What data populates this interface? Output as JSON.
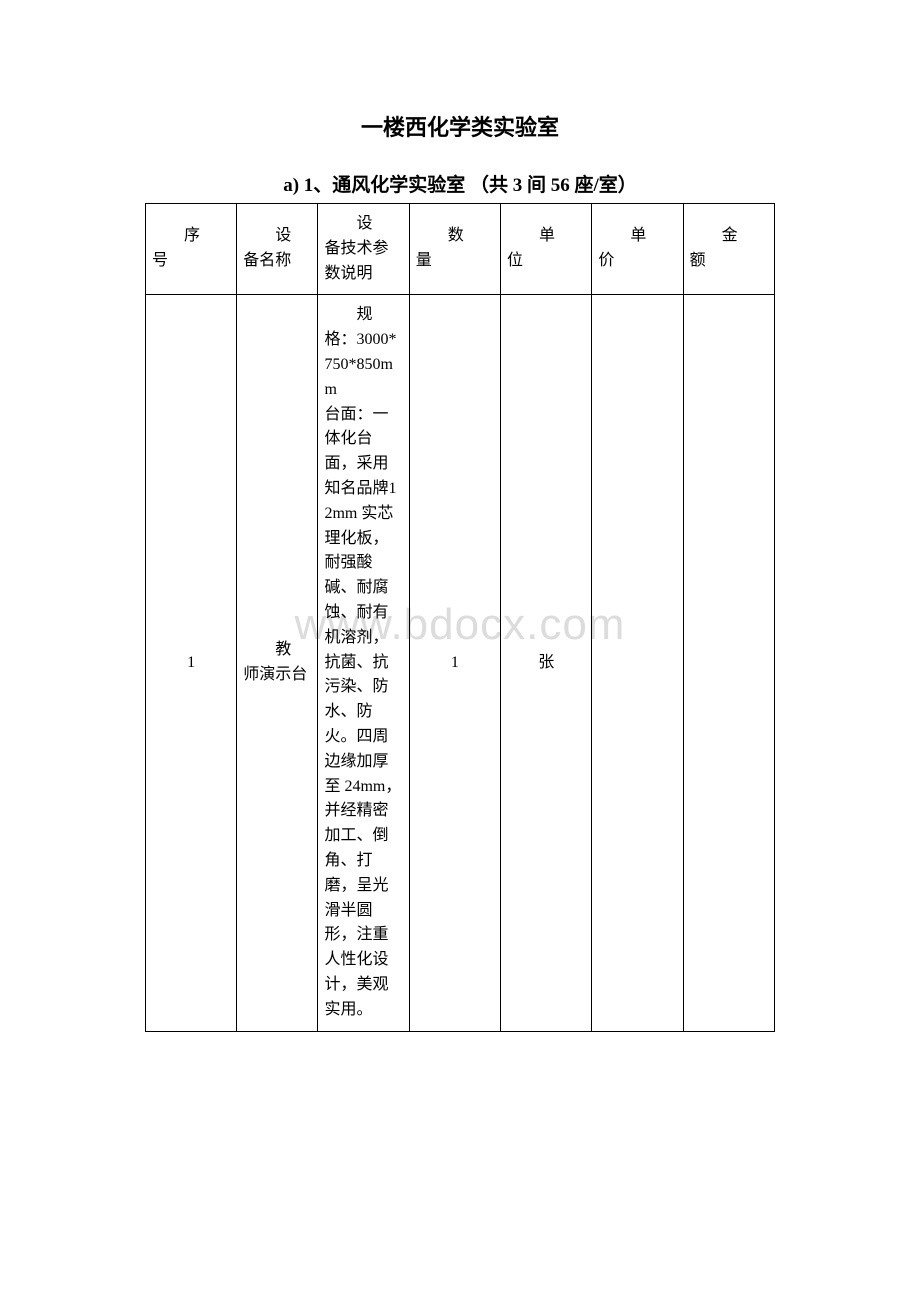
{
  "watermark": "www.bdocx.com",
  "title": "一楼西化学类实验室",
  "subtitle": "a) 1、通风化学实验室 （共 3 间 56 座/室）",
  "headers": {
    "seq_line1": "序",
    "seq_line2": "号",
    "name_line1": "设",
    "name_line2": "备名称",
    "spec_line1": "设",
    "spec_line2": "备技术参数说明",
    "qty_line1": "数",
    "qty_line2": "量",
    "unit_line1": "单",
    "unit_line2": "位",
    "price_line1": "单",
    "price_line2": "价",
    "amount_line1": "金",
    "amount_line2": "额"
  },
  "row1": {
    "seq": "1",
    "name_line1": "教",
    "name_line2": "师演示台",
    "spec_l1": "规",
    "spec_rest": "格：3000*750*850mm",
    "spec_p2": "台面：一体化台面，采用知名品牌12mm 实芯理化板，耐强酸碱、耐腐蚀、耐有机溶剂，抗菌、抗污染、防水、防火。四周边缘加厚至 24mm，并经精密加工、倒角、打磨，呈光滑半圆形，注重人性化设计，美观实用。",
    "qty": "1",
    "unit": "张",
    "price": "",
    "amount": ""
  }
}
